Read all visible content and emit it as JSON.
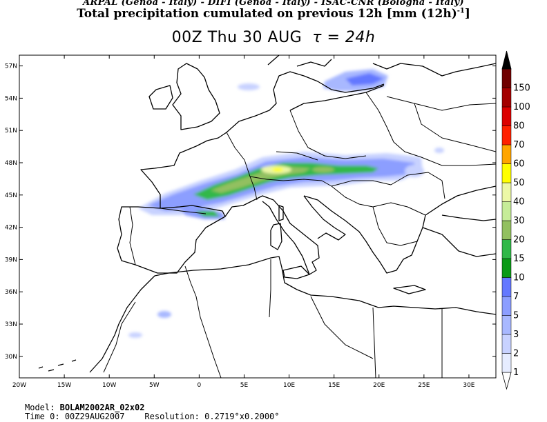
{
  "header": {
    "institutions": "ARPAL (Genoa - Italy)  -  DIFI (Genoa - Italy)  -  ISAC-CNR (Bologna - Italy)",
    "title": "Total precipitation cumulated on previous 12h [mm (12h)",
    "title_sup": "-1",
    "title_end": "]",
    "time_label": "00Z Thu 30 AUG",
    "tau_label": "τ = 24h"
  },
  "map": {
    "lon_range": [
      -20,
      33
    ],
    "lat_range": [
      28,
      58
    ],
    "lat_ticks": [
      {
        "v": 57,
        "label": "57N"
      },
      {
        "v": 54,
        "label": "54N"
      },
      {
        "v": 51,
        "label": "51N"
      },
      {
        "v": 48,
        "label": "48N"
      },
      {
        "v": 45,
        "label": "45N"
      },
      {
        "v": 42,
        "label": "42N"
      },
      {
        "v": 39,
        "label": "39N"
      },
      {
        "v": 36,
        "label": "36N"
      },
      {
        "v": 33,
        "label": "33N"
      },
      {
        "v": 30,
        "label": "30N"
      }
    ],
    "lon_ticks": [
      {
        "v": -20,
        "label": "20W"
      },
      {
        "v": -15,
        "label": "15W"
      },
      {
        "v": -10,
        "label": "10W"
      },
      {
        "v": -5,
        "label": "5W"
      },
      {
        "v": 0,
        "label": "0"
      },
      {
        "v": 5,
        "label": "5E"
      },
      {
        "v": 10,
        "label": "10E"
      },
      {
        "v": 15,
        "label": "15E"
      },
      {
        "v": 20,
        "label": "20E"
      },
      {
        "v": 25,
        "label": "25E"
      },
      {
        "v": 30,
        "label": "30E"
      }
    ]
  },
  "colorbar": {
    "levels": [
      {
        "label": "1",
        "color": "#e6ecff"
      },
      {
        "label": "2",
        "color": "#c8d2ff"
      },
      {
        "label": "3",
        "color": "#a8b8ff"
      },
      {
        "label": "5",
        "color": "#8c9eff"
      },
      {
        "label": "7",
        "color": "#6478ff"
      },
      {
        "label": "10",
        "color": "#0a9a16"
      },
      {
        "label": "15",
        "color": "#30b848"
      },
      {
        "label": "20",
        "color": "#92c060"
      },
      {
        "label": "30",
        "color": "#c6ec98"
      },
      {
        "label": "40",
        "color": "#ecf8a6"
      },
      {
        "label": "50",
        "color": "#ffff00"
      },
      {
        "label": "60",
        "color": "#ffa500"
      },
      {
        "label": "70",
        "color": "#ff2000"
      },
      {
        "label": "80",
        "color": "#dc0000"
      },
      {
        "label": "100",
        "color": "#a40000"
      },
      {
        "label": "150",
        "color": "#700000"
      }
    ],
    "top_color": "#000000"
  },
  "footer": {
    "model_label": "Model:",
    "model_value": "BOLAM2002AR_02x02",
    "time0_label": "Time 0:",
    "time0_value": "00Z29AUG2007",
    "resolution_label": "Resolution:",
    "resolution_value": "0.2719°x0.2000°"
  }
}
